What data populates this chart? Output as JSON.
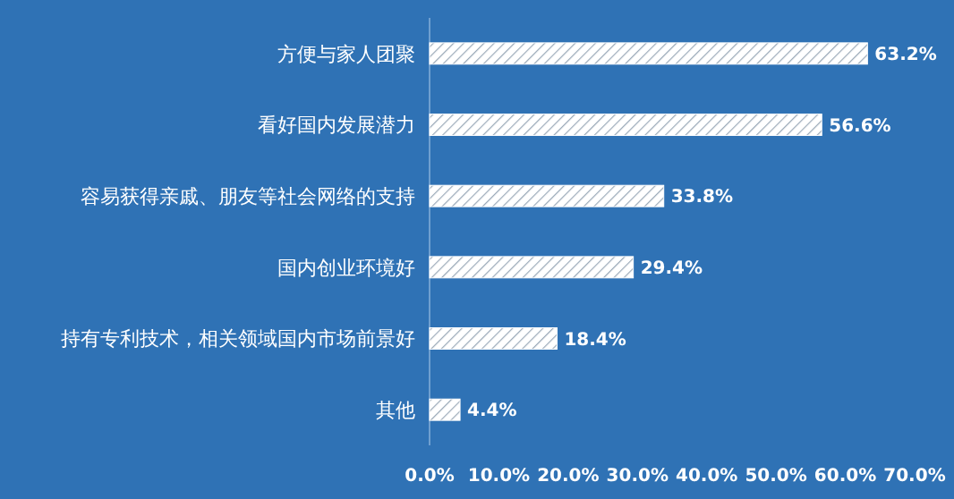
{
  "chart_data": {
    "type": "bar",
    "orientation": "horizontal",
    "categories": [
      "方便与家人团聚",
      "看好国内发展潜力",
      "容易获得亲戚、朋友等社会网络的支持",
      "国内创业环境好",
      "持有专利技术，相关领域国内市场前景好",
      "其他"
    ],
    "values": [
      63.2,
      56.6,
      33.8,
      29.4,
      18.4,
      4.4
    ],
    "value_labels": [
      "63.2%",
      "56.6%",
      "33.8%",
      "29.4%",
      "18.4%",
      "4.4%"
    ],
    "color": "#ffffff",
    "xlim": [
      0,
      70
    ],
    "xticks": [
      {
        "value": 0,
        "label": "0.0%"
      },
      {
        "value": 10,
        "label": "10.0%"
      },
      {
        "value": 20,
        "label": "20.0%"
      },
      {
        "value": 30,
        "label": "30.0%"
      },
      {
        "value": 40,
        "label": "40.0%"
      },
      {
        "value": 50,
        "label": "50.0%"
      },
      {
        "value": 60,
        "label": "60.0%"
      },
      {
        "value": 70,
        "label": "70.0%"
      }
    ],
    "grid": false
  }
}
